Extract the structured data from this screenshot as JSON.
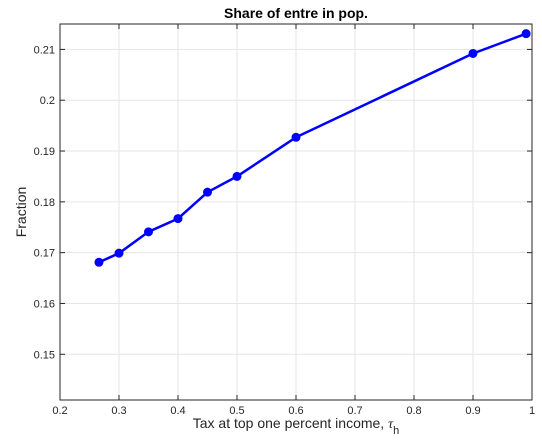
{
  "chart_data": {
    "type": "line",
    "title": "Share of entre in pop.",
    "xlabel": "Tax at top one percent income, ",
    "xlabel_symbol": "τ",
    "xlabel_subscript": "h",
    "ylabel": "Fraction",
    "xlim": [
      0.2,
      1.0
    ],
    "ylim": [
      0.141,
      0.215
    ],
    "xticks": [
      0.2,
      0.3,
      0.4,
      0.5,
      0.6,
      0.7,
      0.8,
      0.9,
      1.0
    ],
    "xtick_labels": [
      "0.2",
      "0.3",
      "0.4",
      "0.5",
      "0.6",
      "0.7",
      "0.8",
      "0.9",
      "1"
    ],
    "yticks": [
      0.15,
      0.16,
      0.17,
      0.18,
      0.19,
      0.2,
      0.21
    ],
    "ytick_labels": [
      "0.15",
      "0.16",
      "0.17",
      "0.18",
      "0.19",
      "0.2",
      "0.21"
    ],
    "grid": true,
    "series": [
      {
        "color": "#0000ff",
        "marker": "circle",
        "x": [
          0.266,
          0.3,
          0.35,
          0.4,
          0.45,
          0.5,
          0.6,
          0.9,
          0.99
        ],
        "y": [
          0.1681,
          0.1699,
          0.1741,
          0.1767,
          0.1819,
          0.185,
          0.1927,
          0.2092,
          0.2131
        ]
      }
    ]
  }
}
